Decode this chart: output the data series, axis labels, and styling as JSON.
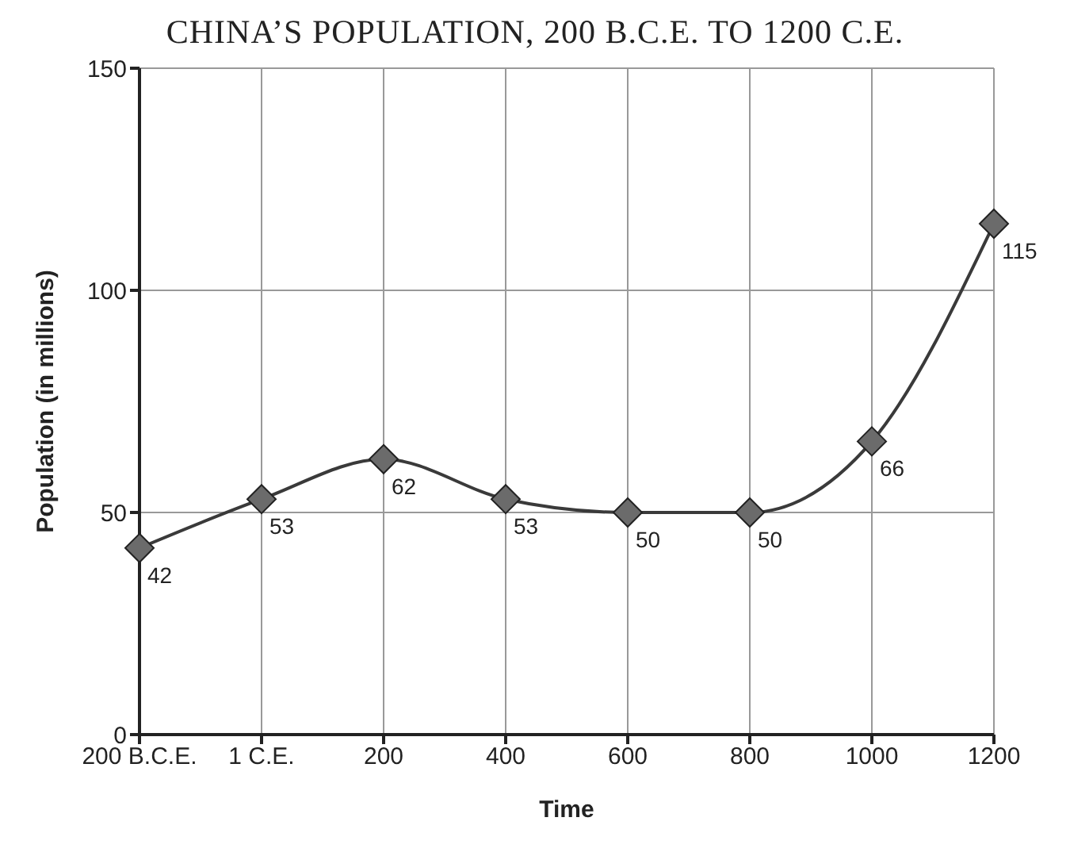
{
  "chart_data": {
    "type": "line",
    "title": "CHINA’S POPULATION, 200 B.C.E. TO 1200 C.E.",
    "xlabel": "Time",
    "ylabel": "Population (in millions)",
    "categories": [
      "200 B.C.E.",
      "1 C.E.",
      "200",
      "400",
      "600",
      "800",
      "1000",
      "1200"
    ],
    "series": [
      {
        "color": "#3a3a3a",
        "values": [
          42,
          53,
          62,
          53,
          50,
          50,
          66,
          115
        ]
      }
    ],
    "ylim": [
      0,
      150
    ],
    "yticks": [
      0,
      50,
      100,
      150
    ],
    "grid": true,
    "marker": "diamond",
    "line_style": "solid",
    "data_labels": true
  }
}
